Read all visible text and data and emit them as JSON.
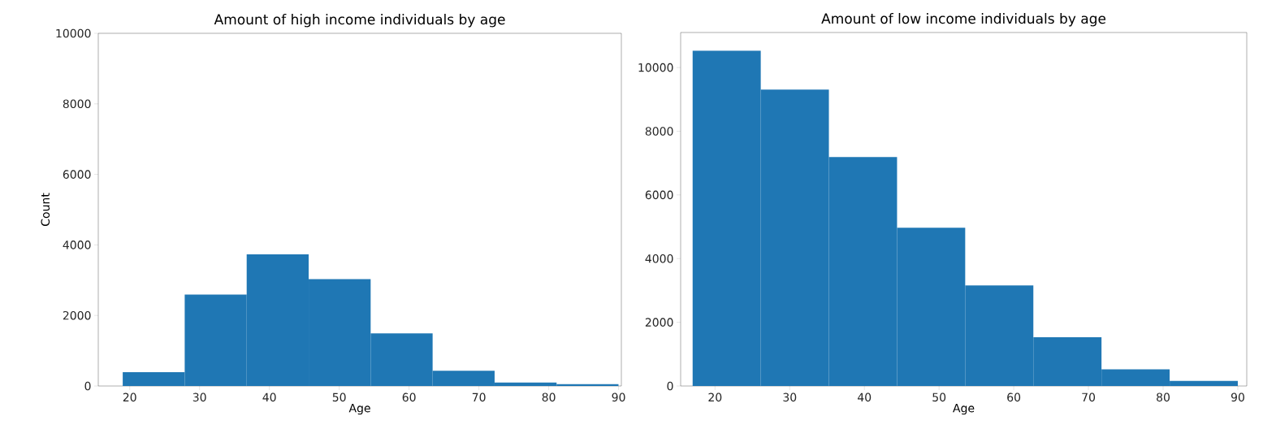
{
  "chart_data": [
    {
      "type": "histogram",
      "title": "Amount of high income individuals by age",
      "xlabel": "Age",
      "ylabel": "Count",
      "color": "#1f77b4",
      "bins": [
        19,
        27.875,
        36.75,
        45.625,
        54.5,
        63.375,
        72.25,
        81.125,
        90
      ],
      "values": [
        390,
        2590,
        3730,
        3030,
        1490,
        430,
        100,
        50
      ],
      "xlim": [
        15.5,
        90.4
      ],
      "ylim": [
        0,
        10000
      ],
      "xticks": [
        20,
        30,
        40,
        50,
        60,
        70,
        80,
        90
      ],
      "yticks": [
        0,
        2000,
        4000,
        6000,
        8000,
        10000
      ]
    },
    {
      "type": "histogram",
      "title": "Amount of low income individuals by age",
      "xlabel": "Age",
      "color": "#1f77b4",
      "bins": [
        17,
        26.125,
        35.25,
        44.375,
        53.5,
        62.625,
        71.75,
        80.875,
        90
      ],
      "values": [
        10530,
        9310,
        7190,
        4970,
        3160,
        1530,
        520,
        160
      ],
      "xlim": [
        15.4,
        91.2
      ],
      "ylim": [
        0,
        11100
      ],
      "xticks": [
        20,
        30,
        40,
        50,
        60,
        70,
        80,
        90
      ],
      "yticks": [
        0,
        2000,
        4000,
        6000,
        8000,
        10000
      ]
    }
  ]
}
